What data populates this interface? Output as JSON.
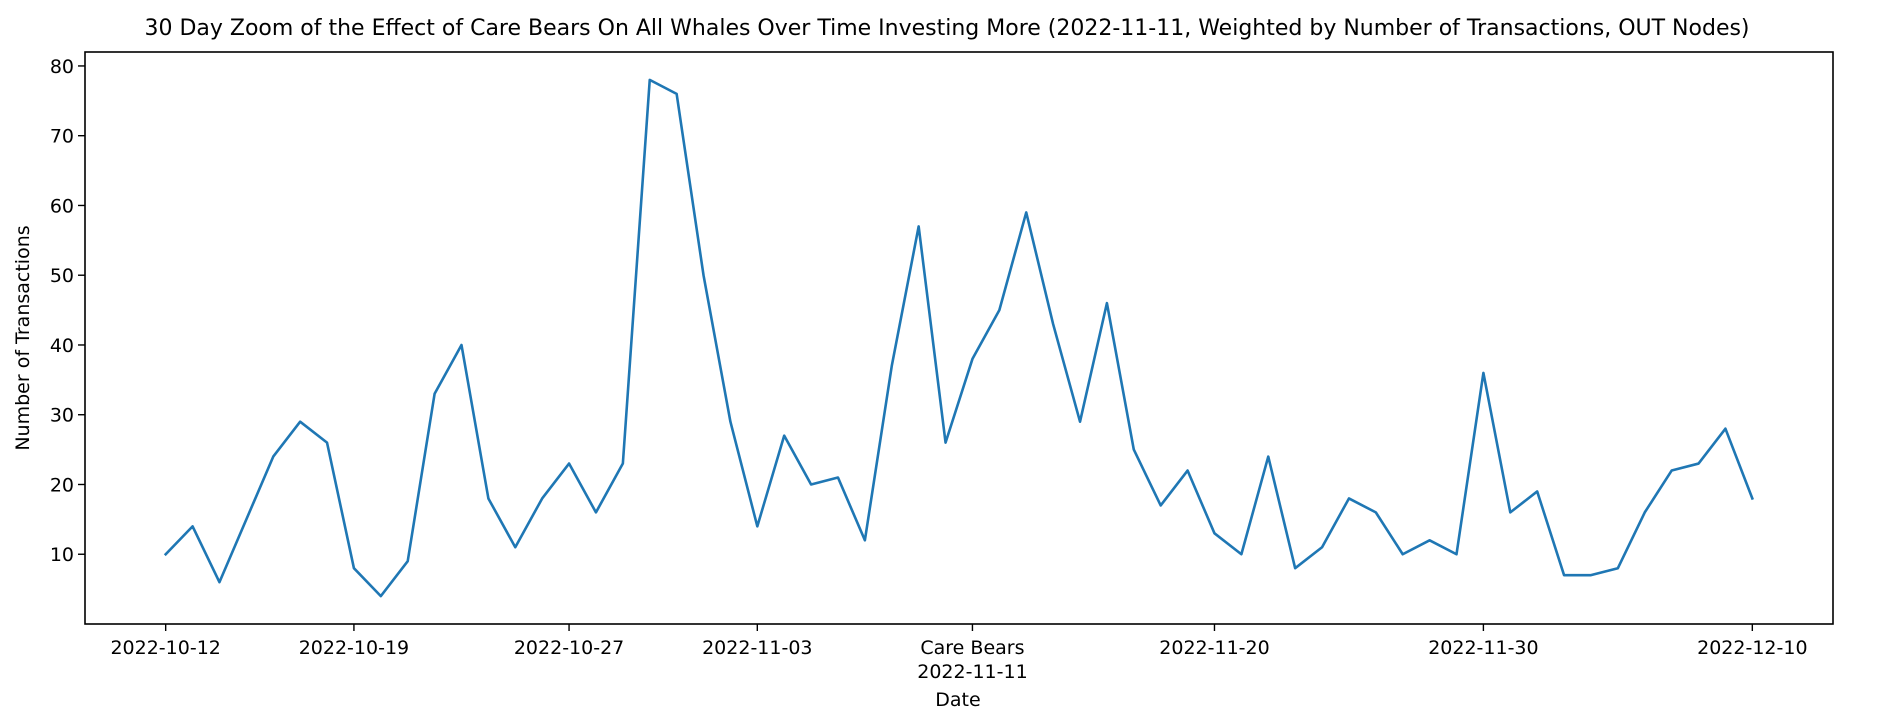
{
  "chart_data": {
    "type": "line",
    "title": "30 Day Zoom of the Effect of Care Bears On All Whales Over Time Investing More (2022-11-11, Weighted by Number of Transactions, OUT Nodes)",
    "xlabel": "Date",
    "ylabel": "Number of Transactions",
    "x_start": "2022-10-12",
    "x_end": "2022-12-10",
    "xlim": [
      "2022-10-09",
      "2022-12-13"
    ],
    "ylim": [
      0,
      82
    ],
    "grid": false,
    "x_ticks": [
      {
        "date": "2022-10-12",
        "label": "2022-10-12"
      },
      {
        "date": "2022-10-19",
        "label": "2022-10-19"
      },
      {
        "date": "2022-10-27",
        "label": "2022-10-27"
      },
      {
        "date": "2022-11-03",
        "label": "2022-11-03"
      },
      {
        "date": "2022-11-11",
        "label": "Care Bears",
        "label2": "2022-11-11"
      },
      {
        "date": "2022-11-20",
        "label": "2022-11-20"
      },
      {
        "date": "2022-11-30",
        "label": "2022-11-30"
      },
      {
        "date": "2022-12-10",
        "label": "2022-12-10"
      }
    ],
    "y_ticks": [
      10,
      20,
      30,
      40,
      50,
      60,
      70,
      80
    ],
    "series": [
      {
        "color": "#1f77b4",
        "x": [
          "2022-10-12",
          "2022-10-13",
          "2022-10-14",
          "2022-10-15",
          "2022-10-16",
          "2022-10-17",
          "2022-10-18",
          "2022-10-19",
          "2022-10-20",
          "2022-10-21",
          "2022-10-22",
          "2022-10-23",
          "2022-10-24",
          "2022-10-25",
          "2022-10-26",
          "2022-10-27",
          "2022-10-28",
          "2022-10-29",
          "2022-10-30",
          "2022-10-31",
          "2022-11-01",
          "2022-11-02",
          "2022-11-03",
          "2022-11-04",
          "2022-11-05",
          "2022-11-06",
          "2022-11-07",
          "2022-11-08",
          "2022-11-09",
          "2022-11-10",
          "2022-11-11",
          "2022-11-12",
          "2022-11-13",
          "2022-11-14",
          "2022-11-15",
          "2022-11-16",
          "2022-11-17",
          "2022-11-18",
          "2022-11-19",
          "2022-11-20",
          "2022-11-21",
          "2022-11-22",
          "2022-11-23",
          "2022-11-24",
          "2022-11-25",
          "2022-11-26",
          "2022-11-27",
          "2022-11-28",
          "2022-11-29",
          "2022-11-30",
          "2022-12-01",
          "2022-12-02",
          "2022-12-03",
          "2022-12-04",
          "2022-12-05",
          "2022-12-06",
          "2022-12-07",
          "2022-12-08",
          "2022-12-09",
          "2022-12-10"
        ],
        "values": [
          10,
          14,
          6,
          15,
          24,
          29,
          26,
          8,
          4,
          9,
          33,
          40,
          18,
          11,
          18,
          23,
          16,
          23,
          78,
          76,
          50,
          29,
          14,
          27,
          20,
          21,
          12,
          37,
          57,
          26,
          38,
          45,
          59,
          43,
          29,
          46,
          25,
          17,
          22,
          13,
          10,
          24,
          8,
          11,
          18,
          16,
          10,
          12,
          10,
          36,
          16,
          19,
          7,
          7,
          8,
          16,
          22,
          23,
          28,
          18
        ]
      }
    ]
  }
}
